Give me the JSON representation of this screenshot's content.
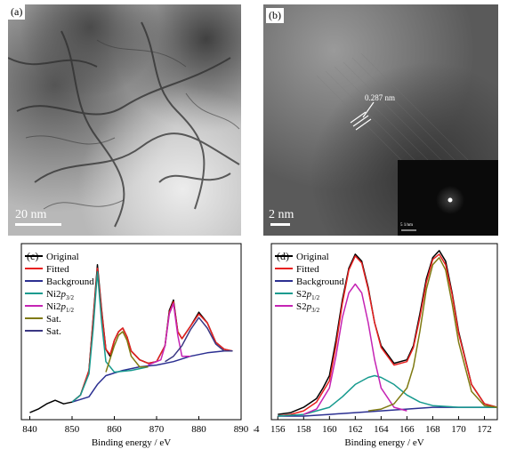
{
  "panels": {
    "a": {
      "label": "(a)",
      "scale": "20 nm"
    },
    "b": {
      "label": "(b)",
      "scale": "2 nm",
      "lattice": "0.287 nm",
      "inset_scale": "5 1/nm"
    },
    "c": {
      "label": "(c)",
      "xlabel": "Binding energy / eV"
    },
    "d": {
      "label": "(d)",
      "xlabel": "Binding energy / eV"
    }
  },
  "chart_data": [
    {
      "type": "line",
      "panel": "c",
      "xlabel": "Binding energy / eV",
      "xlim": [
        838,
        890
      ],
      "xticks": [
        840,
        850,
        860,
        870,
        880,
        890
      ],
      "legend_placement": "top-left",
      "legend": [
        {
          "main": "Original",
          "sub": "",
          "tail": "",
          "color": "#000000"
        },
        {
          "main": "Fitted",
          "sub": "",
          "tail": "",
          "color": "#e8201f"
        },
        {
          "main": "Background",
          "sub": "",
          "tail": "",
          "color": "#2b2f91"
        },
        {
          "main": "Ni2",
          "italic": "p",
          "sub": "3/2",
          "tail": "",
          "color": "#169a8e"
        },
        {
          "main": "Ni2",
          "italic": "p",
          "sub": "1/2",
          "tail": "",
          "color": "#c524b4"
        },
        {
          "main": "Sat.",
          "sub": "",
          "tail": "",
          "color": "#7f7a12"
        },
        {
          "main": "Sat.",
          "sub": "",
          "tail": "",
          "color": "#3a3783"
        }
      ],
      "series": [
        {
          "name": "Original",
          "color": "#000000",
          "x": [
            840,
            842,
            844,
            846,
            848,
            850,
            852,
            854,
            855,
            856,
            857,
            858,
            859,
            860,
            861,
            862,
            863,
            864,
            866,
            868,
            870,
            872,
            873,
            874,
            875,
            876,
            878,
            880,
            882,
            884,
            886,
            888
          ],
          "y": [
            0.04,
            0.06,
            0.09,
            0.11,
            0.09,
            0.1,
            0.14,
            0.28,
            0.58,
            0.88,
            0.62,
            0.4,
            0.36,
            0.45,
            0.5,
            0.52,
            0.47,
            0.39,
            0.34,
            0.32,
            0.33,
            0.42,
            0.62,
            0.68,
            0.5,
            0.46,
            0.53,
            0.61,
            0.55,
            0.44,
            0.4,
            0.39
          ]
        },
        {
          "name": "Fitted",
          "color": "#e8201f",
          "x": [
            850,
            852,
            854,
            855,
            856,
            857,
            858,
            859,
            860,
            861,
            862,
            863,
            864,
            866,
            868,
            870,
            872,
            873,
            874,
            875,
            876,
            878,
            880,
            882,
            884,
            886,
            888
          ],
          "y": [
            0.1,
            0.14,
            0.28,
            0.57,
            0.86,
            0.61,
            0.4,
            0.37,
            0.45,
            0.5,
            0.52,
            0.47,
            0.39,
            0.34,
            0.32,
            0.33,
            0.42,
            0.61,
            0.67,
            0.5,
            0.46,
            0.53,
            0.6,
            0.55,
            0.44,
            0.4,
            0.39
          ]
        },
        {
          "name": "Background",
          "color": "#2b2f91",
          "x": [
            850,
            854,
            856,
            858,
            862,
            866,
            870,
            874,
            878,
            882,
            886,
            888
          ],
          "y": [
            0.1,
            0.13,
            0.2,
            0.25,
            0.28,
            0.3,
            0.31,
            0.33,
            0.36,
            0.38,
            0.39,
            0.39
          ]
        },
        {
          "name": "Ni2p3/2",
          "color": "#169a8e",
          "x": [
            850,
            852,
            854,
            855,
            856,
            857,
            858,
            860,
            864,
            868
          ],
          "y": [
            0.1,
            0.14,
            0.26,
            0.52,
            0.84,
            0.55,
            0.33,
            0.27,
            0.28,
            0.3
          ]
        },
        {
          "name": "Ni2p1/2",
          "color": "#c524b4",
          "x": [
            868,
            871,
            872,
            873,
            874,
            875,
            876,
            878
          ],
          "y": [
            0.31,
            0.34,
            0.42,
            0.6,
            0.66,
            0.48,
            0.36,
            0.36
          ]
        },
        {
          "name": "Sat.",
          "color": "#7f7a12",
          "x": [
            858,
            860,
            861,
            862,
            863,
            864,
            866,
            868
          ],
          "y": [
            0.27,
            0.42,
            0.48,
            0.5,
            0.45,
            0.36,
            0.3,
            0.3
          ]
        },
        {
          "name": "Sat.",
          "color": "#3a3783",
          "x": [
            872,
            874,
            876,
            878,
            880,
            882,
            884,
            886,
            888
          ],
          "y": [
            0.33,
            0.36,
            0.42,
            0.51,
            0.58,
            0.52,
            0.43,
            0.39,
            0.39
          ]
        }
      ]
    },
    {
      "type": "line",
      "panel": "d",
      "xlabel": "Binding energy / eV",
      "xlim": [
        155.5,
        173
      ],
      "xticks": [
        154,
        156,
        158,
        160,
        162,
        164,
        166,
        168,
        170,
        172
      ],
      "legend_placement": "top-left",
      "legend": [
        {
          "main": "Original",
          "sub": "",
          "tail": "",
          "color": "#000000"
        },
        {
          "main": "Fitted",
          "sub": "",
          "tail": "",
          "color": "#e8201f"
        },
        {
          "main": "Background",
          "sub": "",
          "tail": "",
          "color": "#2b2f91"
        },
        {
          "main": "S2",
          "italic": "p",
          "sub": "1/2",
          "tail": "",
          "color": "#169a8e"
        },
        {
          "main": "S2",
          "italic": "p",
          "sub": "3/2",
          "tail": "",
          "color": "#c524b4"
        }
      ],
      "series": [
        {
          "name": "Original",
          "color": "#000000",
          "x": [
            156,
            157,
            158,
            159,
            159.5,
            160,
            160.5,
            161,
            161.5,
            162,
            162.5,
            163,
            163.5,
            164,
            165,
            166,
            166.5,
            167,
            167.5,
            168,
            168.5,
            169,
            169.5,
            170,
            171,
            172,
            173
          ],
          "y": [
            0.03,
            0.04,
            0.07,
            0.12,
            0.18,
            0.25,
            0.45,
            0.68,
            0.86,
            0.94,
            0.9,
            0.75,
            0.55,
            0.42,
            0.32,
            0.34,
            0.42,
            0.6,
            0.8,
            0.92,
            0.96,
            0.9,
            0.72,
            0.5,
            0.2,
            0.09,
            0.07
          ]
        },
        {
          "name": "Fitted",
          "color": "#e8201f",
          "x": [
            156,
            157,
            158,
            159,
            160,
            160.5,
            161,
            161.5,
            162,
            162.5,
            163,
            163.5,
            164,
            165,
            166,
            166.5,
            167,
            167.5,
            168,
            168.5,
            169,
            169.5,
            170,
            171,
            172,
            173
          ],
          "y": [
            0.02,
            0.03,
            0.05,
            0.1,
            0.22,
            0.42,
            0.66,
            0.85,
            0.93,
            0.89,
            0.74,
            0.55,
            0.41,
            0.31,
            0.33,
            0.41,
            0.58,
            0.78,
            0.91,
            0.94,
            0.88,
            0.71,
            0.49,
            0.2,
            0.09,
            0.07
          ]
        },
        {
          "name": "Background",
          "color": "#2b2f91",
          "x": [
            156,
            158,
            160,
            162,
            164,
            166,
            168,
            170,
            172,
            173
          ],
          "y": [
            0.02,
            0.02,
            0.03,
            0.04,
            0.05,
            0.06,
            0.07,
            0.07,
            0.07,
            0.07
          ]
        },
        {
          "name": "S2p1/2",
          "color": "#169a8e",
          "x": [
            156,
            158,
            160,
            161,
            162,
            163,
            163.5,
            164,
            165,
            166,
            167,
            168,
            170,
            172,
            173
          ],
          "y": [
            0.02,
            0.03,
            0.07,
            0.13,
            0.2,
            0.24,
            0.25,
            0.24,
            0.2,
            0.14,
            0.1,
            0.08,
            0.07,
            0.07,
            0.07
          ]
        },
        {
          "name": "S2p3/2",
          "color": "#c524b4",
          "x": [
            158,
            159,
            160,
            160.5,
            161,
            161.5,
            162,
            162.5,
            163,
            163.5,
            164,
            165,
            166
          ],
          "y": [
            0.03,
            0.06,
            0.18,
            0.36,
            0.58,
            0.72,
            0.77,
            0.72,
            0.55,
            0.34,
            0.18,
            0.07,
            0.05
          ]
        },
        {
          "name": "Sat.",
          "color": "#7f7a12",
          "x": [
            163,
            164,
            165,
            166,
            166.5,
            167,
            167.5,
            168,
            168.5,
            169,
            169.5,
            170,
            171,
            172,
            173
          ],
          "y": [
            0.05,
            0.06,
            0.09,
            0.18,
            0.3,
            0.5,
            0.74,
            0.88,
            0.92,
            0.85,
            0.66,
            0.44,
            0.16,
            0.08,
            0.07
          ]
        }
      ]
    }
  ]
}
